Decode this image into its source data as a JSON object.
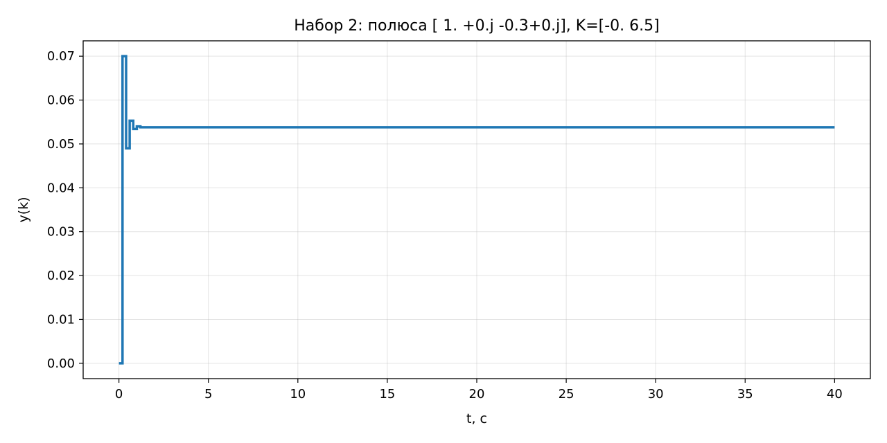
{
  "chart_data": {
    "type": "line",
    "step": true,
    "title": "Набор 2: полюса [ 1. +0.j -0.3+0.j], K=[-0.   6.5]",
    "xlabel": "t, c",
    "ylabel": "y(k)",
    "xlim": [
      -2,
      42
    ],
    "ylim": [
      -0.0035,
      0.0735
    ],
    "xticks": [
      0,
      5,
      10,
      15,
      20,
      25,
      30,
      35,
      40
    ],
    "xtick_labels": [
      "0",
      "5",
      "10",
      "15",
      "20",
      "25",
      "30",
      "35",
      "40"
    ],
    "yticks": [
      0.0,
      0.01,
      0.02,
      0.03,
      0.04,
      0.05,
      0.06,
      0.07
    ],
    "ytick_labels": [
      "0.00",
      "0.01",
      "0.02",
      "0.03",
      "0.04",
      "0.05",
      "0.06",
      "0.07"
    ],
    "grid": true,
    "color": "#1f77b4",
    "series": [
      {
        "x": [
          0.0,
          0.2,
          0.4,
          0.6,
          0.8,
          1.0,
          1.2,
          40.0
        ],
        "y": [
          0.0,
          0.07,
          0.049,
          0.0553,
          0.0534,
          0.054,
          0.0538,
          0.0538
        ]
      }
    ]
  }
}
